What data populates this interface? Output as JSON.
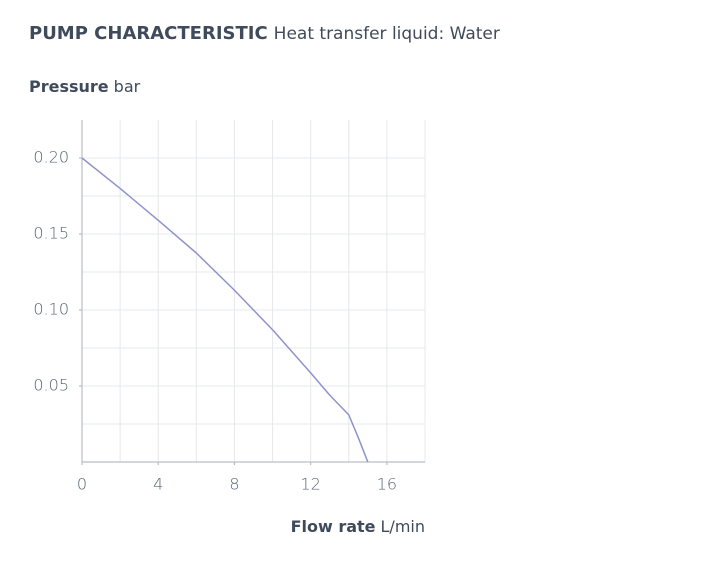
{
  "chart_data": {
    "type": "line",
    "title": "PUMP CHARACTERISTIC",
    "subtitle": "Heat transfer liquid: Water",
    "y_label": "Pressure",
    "y_unit": "bar",
    "x_label": "Flow rate",
    "x_unit": "L/min",
    "x": [
      0,
      2,
      4,
      6,
      8,
      10,
      12,
      13,
      14,
      14.5,
      15
    ],
    "series": [
      {
        "name": "Water",
        "color": "#8f93cc",
        "values": [
          0.2,
          0.18,
          0.159,
          0.1375,
          0.113,
          0.087,
          0.0586,
          0.044,
          0.031,
          0.016,
          0
        ]
      }
    ],
    "xlim": [
      0,
      18
    ],
    "ylim": [
      0,
      0.225
    ],
    "xticks": [
      0,
      4,
      8,
      12,
      16
    ],
    "yticks": [
      {
        "value": 0.05,
        "label": "0.05"
      },
      0.15,
      {
        "value": 0.1,
        "label": "0.10"
      },
      {
        "value": 0.2,
        "label": "0.20"
      }
    ],
    "xgrid": [
      2,
      4,
      6,
      8,
      10,
      12,
      14,
      16,
      18
    ],
    "ygrid": [
      0.025,
      0.05,
      0.075,
      0.1,
      0.125,
      0.15,
      0.175,
      0.2
    ],
    "grid": true
  }
}
